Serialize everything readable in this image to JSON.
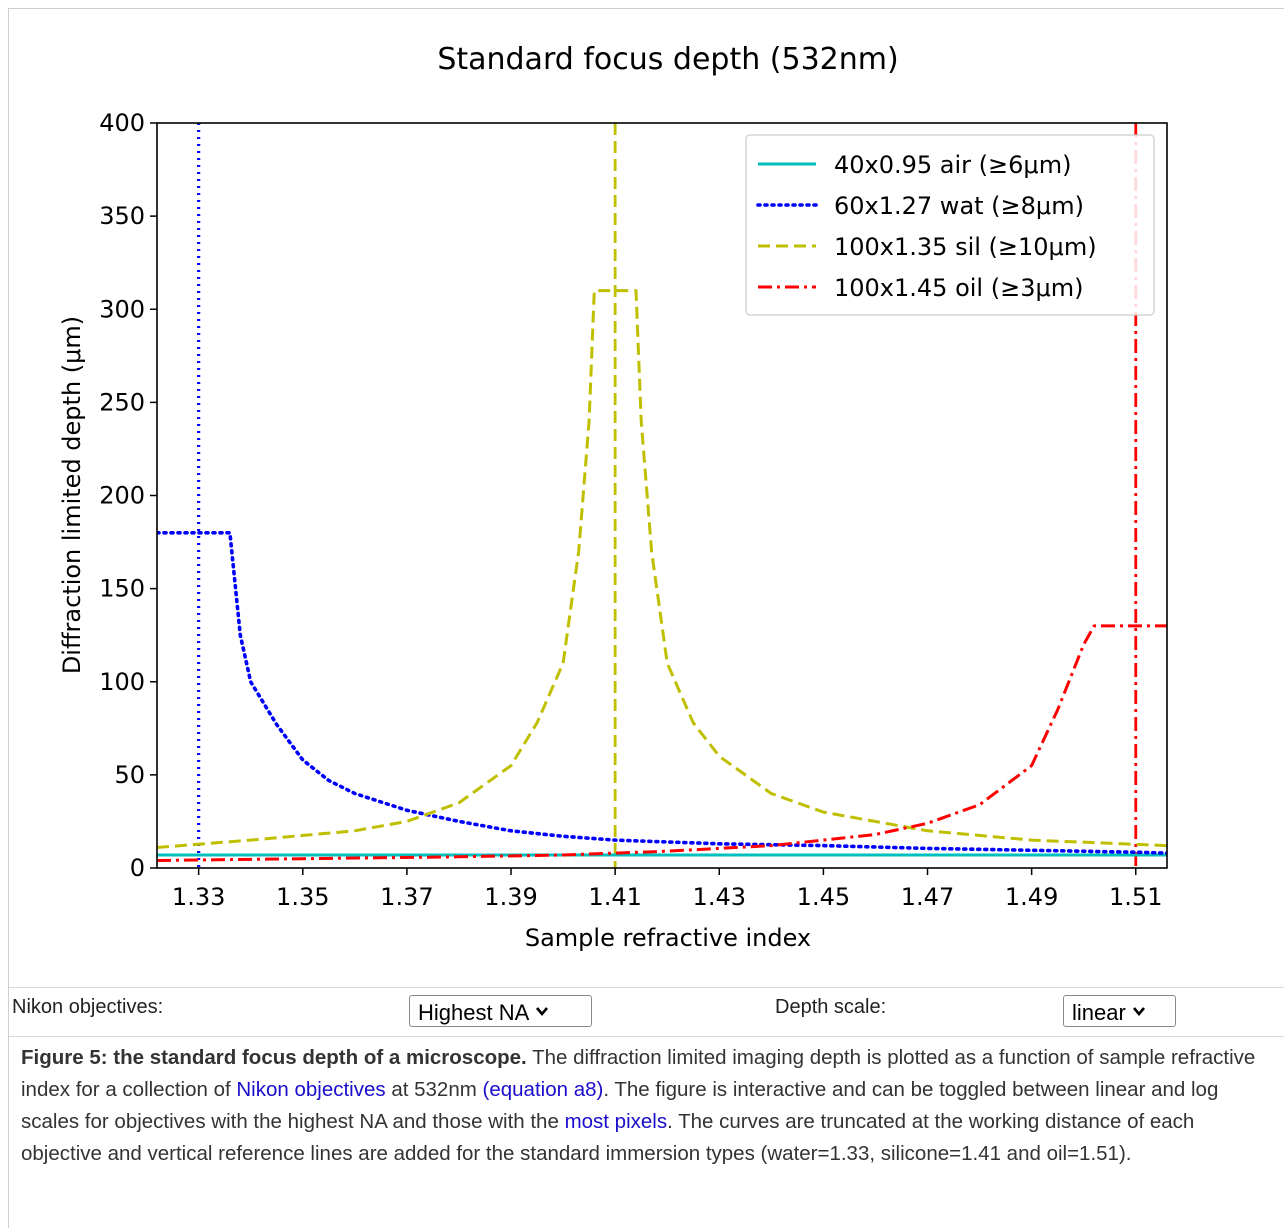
{
  "chart_data": {
    "type": "line",
    "title": "Standard focus depth (532nm)",
    "xlabel": "Sample refractive index",
    "ylabel": "Diffraction limited depth (μm)",
    "xlim": [
      1.322,
      1.516
    ],
    "ylim": [
      0,
      400
    ],
    "xticks": [
      "1.33",
      "1.35",
      "1.37",
      "1.39",
      "1.41",
      "1.43",
      "1.45",
      "1.47",
      "1.49",
      "1.51"
    ],
    "yticks": [
      "0",
      "50",
      "100",
      "150",
      "200",
      "250",
      "300",
      "350",
      "400"
    ],
    "legend_position": "top-right",
    "grid": false,
    "series": [
      {
        "name": "40x0.95 air (≥6μm)",
        "color": "#00bfbf",
        "style": "solid",
        "x": [
          1.322,
          1.35,
          1.4,
          1.45,
          1.516
        ],
        "y": [
          7,
          7,
          7,
          7,
          7
        ]
      },
      {
        "name": "60x1.27 wat (≥8μm)",
        "color": "#0000ff",
        "style": "dotted",
        "x": [
          1.322,
          1.336,
          1.338,
          1.34,
          1.345,
          1.35,
          1.355,
          1.36,
          1.37,
          1.38,
          1.39,
          1.4,
          1.41,
          1.43,
          1.45,
          1.47,
          1.49,
          1.51,
          1.516
        ],
        "y": [
          180,
          180,
          125,
          100,
          77,
          58,
          47,
          40,
          31,
          25,
          20,
          17,
          15,
          13,
          12,
          10.5,
          9.5,
          8.5,
          8
        ]
      },
      {
        "name": "100x1.35 sil (≥10μm)",
        "color": "#bfbf00",
        "style": "dashed",
        "x": [
          1.322,
          1.34,
          1.36,
          1.37,
          1.38,
          1.39,
          1.395,
          1.4,
          1.403,
          1.405,
          1.406,
          1.414,
          1.415,
          1.417,
          1.42,
          1.425,
          1.43,
          1.44,
          1.45,
          1.47,
          1.49,
          1.516
        ],
        "y": [
          11,
          15,
          20,
          25,
          35,
          55,
          78,
          110,
          170,
          240,
          310,
          310,
          240,
          170,
          110,
          78,
          60,
          40,
          30,
          20,
          15,
          12
        ]
      },
      {
        "name": "100x1.45 oil (≥3μm)",
        "color": "#ff0000",
        "style": "dashdot",
        "x": [
          1.322,
          1.35,
          1.38,
          1.4,
          1.42,
          1.44,
          1.46,
          1.47,
          1.48,
          1.49,
          1.495,
          1.5,
          1.502,
          1.516
        ],
        "y": [
          4,
          5,
          6,
          7,
          9,
          12,
          18,
          24,
          34,
          55,
          85,
          120,
          130,
          130
        ]
      }
    ],
    "reference_lines": [
      {
        "x": 1.33,
        "color": "#0000ff",
        "style": "dotted"
      },
      {
        "x": 1.41,
        "color": "#bfbf00",
        "style": "dashed"
      },
      {
        "x": 1.51,
        "color": "#ff0000",
        "style": "dashdot"
      }
    ]
  },
  "controls": {
    "objectives_label": "Nikon objectives:",
    "objectives_value": "Highest NA",
    "depth_label": "Depth scale:",
    "depth_value": "linear"
  },
  "caption": {
    "bold": "Figure 5: the standard focus depth of a microscope.",
    "t1": " The diffraction limited imaging depth is plotted as a function of sample refractive index for a collection of ",
    "link1": "Nikon objectives",
    "t2": " at 532nm ",
    "link2": "(equation a8)",
    "t3": ". The figure is interactive and can be toggled between linear and log scales for objectives with the highest NA and those with the ",
    "link3": "most pixels",
    "t4": ". The curves are truncated at the working distance of each objective and vertical reference lines are added for the standard immersion types (water=1.33, silicone=1.41 and oil=1.51)."
  }
}
